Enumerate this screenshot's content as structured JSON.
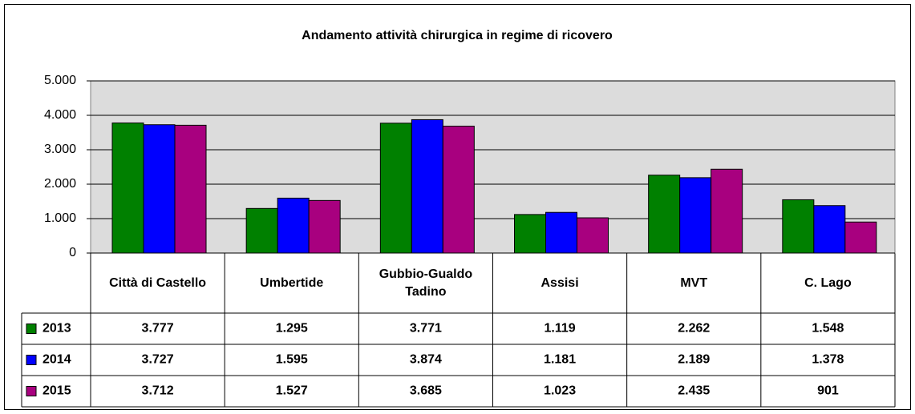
{
  "chart_data": {
    "type": "bar",
    "title": "Andamento attività chirurgica in regime di ricovero",
    "categories": [
      "Città di Castello",
      "Umbertide",
      "Gubbio-Gualdo Tadino",
      "Assisi",
      "MVT",
      "C. Lago"
    ],
    "series": [
      {
        "name": "2013",
        "color": "#008000",
        "values": [
          3777,
          1295,
          3771,
          1119,
          2262,
          1548
        ],
        "value_labels": [
          "3.777",
          "1.295",
          "3.771",
          "1.119",
          "2.262",
          "1.548"
        ]
      },
      {
        "name": "2014",
        "color": "#0000ff",
        "values": [
          3727,
          1595,
          3874,
          1181,
          2189,
          1378
        ],
        "value_labels": [
          "3.727",
          "1.595",
          "3.874",
          "1.181",
          "2.189",
          "1.378"
        ]
      },
      {
        "name": "2015",
        "color": "#a8007f",
        "values": [
          3712,
          1527,
          3685,
          1023,
          2435,
          901
        ],
        "value_labels": [
          "3.712",
          "1.527",
          "3.685",
          "1.023",
          "2.435",
          "901"
        ]
      }
    ],
    "ylim": [
      0,
      5000
    ],
    "yticks": [
      0,
      {
        "value": 1000,
        "label": "1.000"
      },
      {
        "value": 2000,
        "label": "2.000"
      },
      {
        "value": 3000,
        "label": "3.000"
      },
      {
        "value": 4000,
        "label": "4.000"
      },
      {
        "value": 5000,
        "label": "5.000"
      }
    ],
    "grid": true
  }
}
